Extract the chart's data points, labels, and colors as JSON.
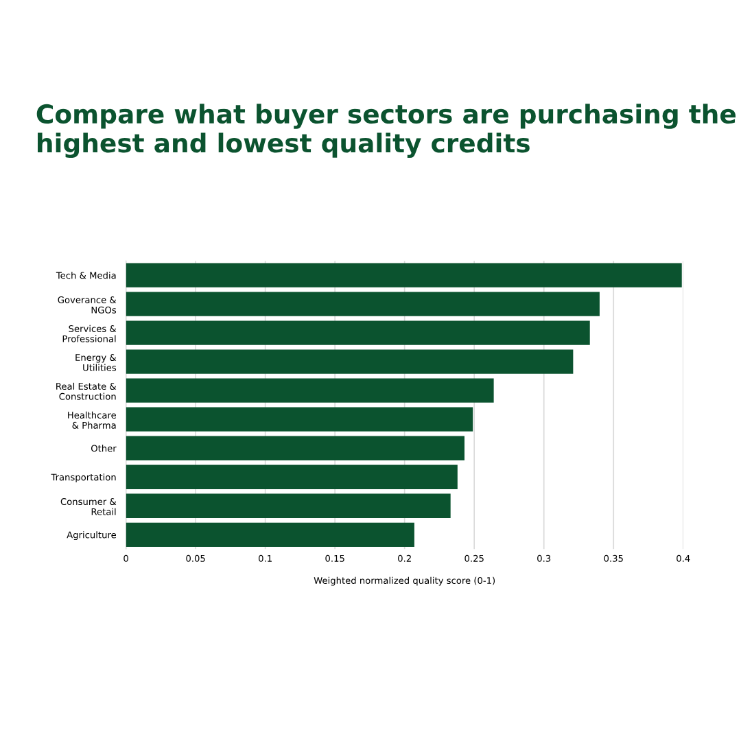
{
  "chart_data": {
    "type": "bar",
    "orientation": "horizontal",
    "title": "Compare what buyer sectors are purchasing the highest and lowest quality credits",
    "xlabel": "Weighted normalized quality score (0-1)",
    "categories": [
      "Tech & Media",
      "Goverance &\nNGOs",
      "Services &\nProfessional",
      "Energy &\nUtilities",
      "Real Estate &\nConstruction",
      "Healthcare\n& Pharma",
      "Other",
      "Transportation",
      "Consumer &\nRetail",
      "Agriculture"
    ],
    "values": [
      0.399,
      0.34,
      0.333,
      0.321,
      0.264,
      0.249,
      0.243,
      0.238,
      0.233,
      0.207
    ],
    "color": "#0b532f",
    "xlim": [
      0,
      0.4
    ],
    "xticks": [
      0,
      0.05,
      0.1,
      0.15,
      0.2,
      0.25,
      0.3,
      0.35,
      0.4
    ],
    "grid": "x"
  }
}
